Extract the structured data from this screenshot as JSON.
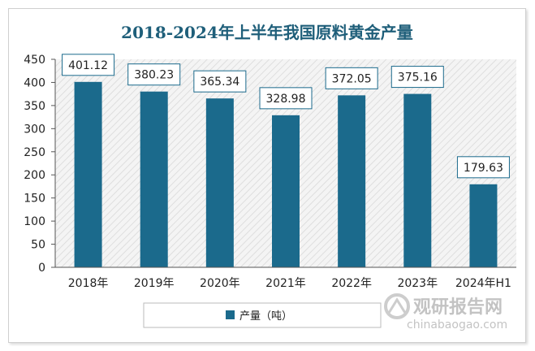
{
  "chart_data": {
    "type": "bar",
    "title": "2018-2024年上半年我国原料黄金产量",
    "categories": [
      "2018年",
      "2019年",
      "2020年",
      "2021年",
      "2022年",
      "2023年",
      "2024年H1"
    ],
    "series": [
      {
        "name": "产量（吨）",
        "values": [
          401.12,
          380.23,
          365.34,
          328.98,
          372.05,
          375.16,
          179.63
        ]
      }
    ],
    "data_labels": [
      "401.12",
      "380.23",
      "365.34",
      "328.98",
      "372.05",
      "375.16",
      "179.63"
    ],
    "y_ticks": [
      "0",
      "50",
      "100",
      "150",
      "200",
      "250",
      "300",
      "350",
      "400",
      "450"
    ],
    "ylim": [
      0,
      450
    ],
    "grid": false,
    "legend_position": "bottom",
    "bar_color": "#1b6a8c",
    "plot_background": "hatched light gray"
  },
  "watermark": {
    "name": "观研报告网",
    "url": "chinabaogao.com"
  }
}
